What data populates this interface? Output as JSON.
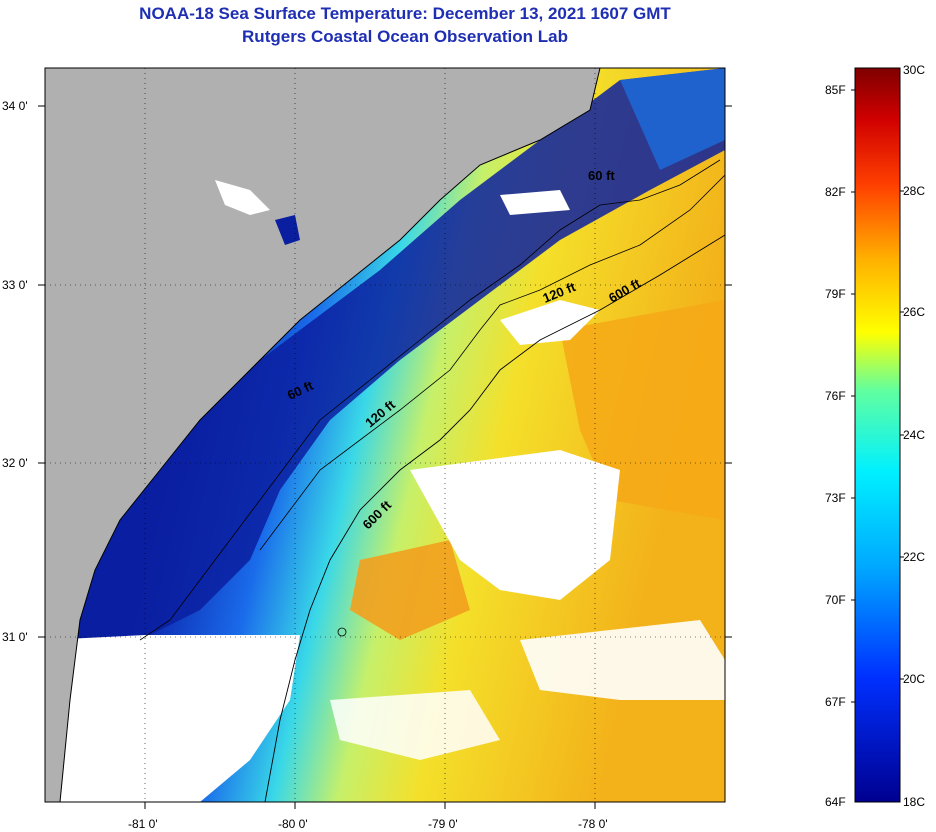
{
  "header": {
    "title": "NOAA-18 Sea Surface Temperature:  December 13, 2021 1607 GMT",
    "subtitle": "Rutgers Coastal Ocean Observation Lab"
  },
  "map": {
    "lat_ticks": [
      "34 0'",
      "33 0'",
      "32 0'",
      "31 0'"
    ],
    "lon_ticks": [
      "-81 0'",
      "-80 0'",
      "-79 0'",
      "-78 0'"
    ],
    "contour_labels": [
      "60 ft",
      "60 ft",
      "120 ft",
      "120 ft",
      "600 ft",
      "600 ft"
    ],
    "land_color": "#b0b0b0",
    "cloud_color": "#ffffff"
  },
  "colorbar": {
    "fahrenheit": [
      "85F",
      "82F",
      "79F",
      "76F",
      "73F",
      "70F",
      "67F",
      "64F"
    ],
    "celsius": [
      "30C",
      "28C",
      "26C",
      "24C",
      "22C",
      "20C",
      "18C"
    ],
    "colors": [
      "#7f0000",
      "#ff0000",
      "#ff8c00",
      "#ffff00",
      "#00e5ff",
      "#0060ff",
      "#00008f"
    ]
  }
}
